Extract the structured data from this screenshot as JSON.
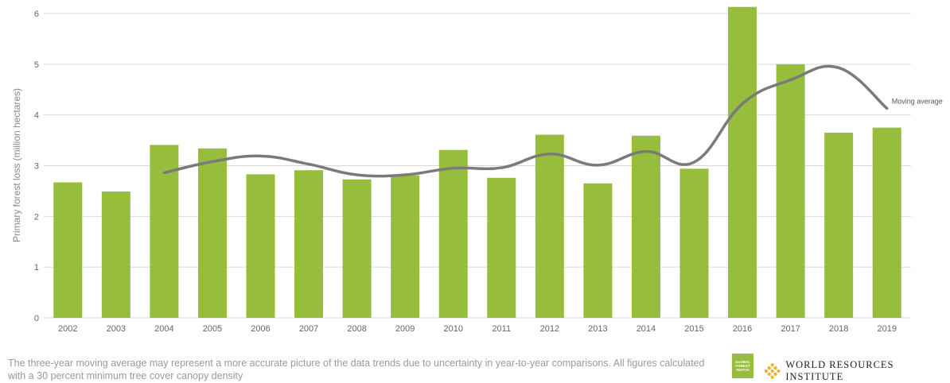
{
  "chart_data": {
    "type": "bar",
    "categories": [
      "2002",
      "2003",
      "2004",
      "2005",
      "2006",
      "2007",
      "2008",
      "2009",
      "2010",
      "2011",
      "2012",
      "2013",
      "2014",
      "2015",
      "2016",
      "2017",
      "2018",
      "2019"
    ],
    "series": [
      {
        "values": [
          2.67,
          2.49,
          3.41,
          3.34,
          2.83,
          2.91,
          2.73,
          2.81,
          3.31,
          2.76,
          3.61,
          2.65,
          3.59,
          2.94,
          6.13,
          5.0,
          3.65,
          3.75
        ],
        "color": "#97bd3d"
      },
      {
        "name": "Moving average",
        "type": "line",
        "color": "#808080",
        "values": [
          null,
          null,
          2.86,
          3.08,
          3.19,
          3.03,
          2.82,
          2.82,
          2.95,
          2.96,
          3.23,
          3.01,
          3.28,
          3.07,
          4.22,
          4.69,
          4.93,
          4.13
        ]
      }
    ],
    "ylabel": "Primary forest loss (million hectares)",
    "xlabel": "",
    "ylim": [
      0,
      6
    ],
    "yticks": [
      0,
      1,
      2,
      3,
      4,
      5,
      6
    ],
    "grid": true
  },
  "footnote": "The three-year moving average may represent a more accurate picture of the data trends due to uncertainty in year-to-year comparisons. All figures calculated with a 30 percent minimum tree cover canopy density",
  "logos": {
    "gfw": [
      "GLOBAL",
      "FOREST",
      "WATCH"
    ],
    "wri": "WORLD RESOURCES INSTITUTE"
  },
  "colors": {
    "bar": "#97bd3d",
    "line": "#808080",
    "grid": "#d9d9d9"
  }
}
